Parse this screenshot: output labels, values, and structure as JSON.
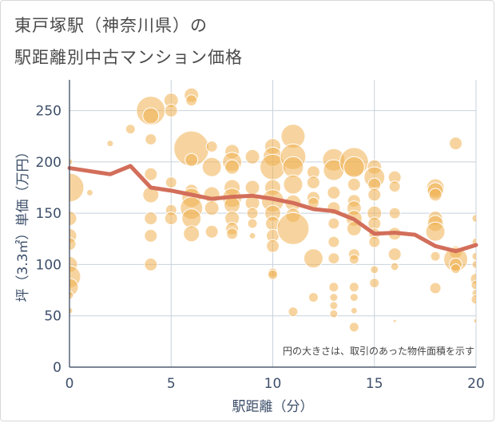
{
  "title_line1": "東戸塚駅（神奈川県）の",
  "title_line2": "駅距離別中古マンション価格",
  "colors": {
    "bubble": "#f0b050",
    "line": "#d26e5a",
    "grid": "#c8d2dc",
    "axis_text": "#3d4f6a"
  },
  "chart_data": {
    "type": "scatter",
    "xlabel": "駅距離（分）",
    "ylabel": "坪（3.3㎡）単価（万円）",
    "xlim": [
      0,
      20
    ],
    "ylim": [
      0,
      280
    ],
    "xticks": [
      "0",
      "5",
      "10",
      "15",
      "20"
    ],
    "yticks": [
      "0",
      "50",
      "100",
      "150",
      "200",
      "250"
    ],
    "annotation": "円の大きさは、取引のあった物件面積を示す",
    "bubbles": [
      {
        "x": 0,
        "y": 175,
        "r": 18
      },
      {
        "x": 0,
        "y": 145,
        "r": 9
      },
      {
        "x": 0,
        "y": 128,
        "r": 9
      },
      {
        "x": 0,
        "y": 120,
        "r": 8
      },
      {
        "x": 0,
        "y": 100,
        "r": 10
      },
      {
        "x": 0,
        "y": 88,
        "r": 14
      },
      {
        "x": 0,
        "y": 78,
        "r": 11
      },
      {
        "x": 0,
        "y": 70,
        "r": 5
      },
      {
        "x": 0,
        "y": 55,
        "r": 4
      },
      {
        "x": 0,
        "y": 200,
        "r": 4
      },
      {
        "x": 1,
        "y": 170,
        "r": 4
      },
      {
        "x": 2,
        "y": 218,
        "r": 4
      },
      {
        "x": 3,
        "y": 232,
        "r": 6
      },
      {
        "x": 4,
        "y": 250,
        "r": 18
      },
      {
        "x": 4,
        "y": 245,
        "r": 10
      },
      {
        "x": 4,
        "y": 222,
        "r": 7
      },
      {
        "x": 4,
        "y": 188,
        "r": 8
      },
      {
        "x": 4,
        "y": 168,
        "r": 10
      },
      {
        "x": 4,
        "y": 145,
        "r": 8
      },
      {
        "x": 4,
        "y": 128,
        "r": 8
      },
      {
        "x": 4,
        "y": 100,
        "r": 8
      },
      {
        "x": 5,
        "y": 260,
        "r": 9
      },
      {
        "x": 5,
        "y": 250,
        "r": 8
      },
      {
        "x": 5,
        "y": 180,
        "r": 7
      },
      {
        "x": 5,
        "y": 153,
        "r": 7
      },
      {
        "x": 5,
        "y": 145,
        "r": 8
      },
      {
        "x": 6,
        "y": 265,
        "r": 9
      },
      {
        "x": 6,
        "y": 260,
        "r": 7
      },
      {
        "x": 6,
        "y": 213,
        "r": 22
      },
      {
        "x": 6,
        "y": 202,
        "r": 8
      },
      {
        "x": 6,
        "y": 172,
        "r": 8
      },
      {
        "x": 6,
        "y": 165,
        "r": 12
      },
      {
        "x": 6,
        "y": 155,
        "r": 14
      },
      {
        "x": 6,
        "y": 145,
        "r": 12
      },
      {
        "x": 6,
        "y": 130,
        "r": 10
      },
      {
        "x": 7,
        "y": 215,
        "r": 7
      },
      {
        "x": 7,
        "y": 195,
        "r": 12
      },
      {
        "x": 7,
        "y": 168,
        "r": 10
      },
      {
        "x": 7,
        "y": 155,
        "r": 9
      },
      {
        "x": 7,
        "y": 132,
        "r": 8
      },
      {
        "x": 8,
        "y": 210,
        "r": 9
      },
      {
        "x": 8,
        "y": 200,
        "r": 12
      },
      {
        "x": 8,
        "y": 195,
        "r": 9
      },
      {
        "x": 8,
        "y": 175,
        "r": 10
      },
      {
        "x": 8,
        "y": 165,
        "r": 12
      },
      {
        "x": 8,
        "y": 158,
        "r": 10
      },
      {
        "x": 8,
        "y": 145,
        "r": 9
      },
      {
        "x": 8,
        "y": 135,
        "r": 8
      },
      {
        "x": 8,
        "y": 130,
        "r": 7
      },
      {
        "x": 9,
        "y": 205,
        "r": 9
      },
      {
        "x": 9,
        "y": 175,
        "r": 9
      },
      {
        "x": 9,
        "y": 160,
        "r": 9
      },
      {
        "x": 9,
        "y": 150,
        "r": 7
      },
      {
        "x": 9,
        "y": 140,
        "r": 6
      },
      {
        "x": 9,
        "y": 128,
        "r": 4
      },
      {
        "x": 10,
        "y": 215,
        "r": 10
      },
      {
        "x": 10,
        "y": 205,
        "r": 12
      },
      {
        "x": 10,
        "y": 195,
        "r": 16
      },
      {
        "x": 10,
        "y": 175,
        "r": 10
      },
      {
        "x": 10,
        "y": 162,
        "r": 14
      },
      {
        "x": 10,
        "y": 150,
        "r": 10
      },
      {
        "x": 10,
        "y": 140,
        "r": 9
      },
      {
        "x": 10,
        "y": 128,
        "r": 8
      },
      {
        "x": 10,
        "y": 118,
        "r": 8
      },
      {
        "x": 10,
        "y": 92,
        "r": 6
      },
      {
        "x": 10,
        "y": 90,
        "r": 6
      },
      {
        "x": 11,
        "y": 225,
        "r": 15
      },
      {
        "x": 11,
        "y": 205,
        "r": 16
      },
      {
        "x": 11,
        "y": 195,
        "r": 13
      },
      {
        "x": 11,
        "y": 178,
        "r": 12
      },
      {
        "x": 11,
        "y": 160,
        "r": 10
      },
      {
        "x": 11,
        "y": 148,
        "r": 9
      },
      {
        "x": 11,
        "y": 135,
        "r": 20
      },
      {
        "x": 11,
        "y": 54,
        "r": 6
      },
      {
        "x": 12,
        "y": 190,
        "r": 8
      },
      {
        "x": 12,
        "y": 180,
        "r": 8
      },
      {
        "x": 12,
        "y": 165,
        "r": 8
      },
      {
        "x": 12,
        "y": 160,
        "r": 7
      },
      {
        "x": 12,
        "y": 106,
        "r": 12
      },
      {
        "x": 12,
        "y": 68,
        "r": 6
      },
      {
        "x": 13,
        "y": 202,
        "r": 14
      },
      {
        "x": 13,
        "y": 192,
        "r": 13
      },
      {
        "x": 13,
        "y": 170,
        "r": 8
      },
      {
        "x": 13,
        "y": 155,
        "r": 8
      },
      {
        "x": 13,
        "y": 140,
        "r": 7
      },
      {
        "x": 13,
        "y": 122,
        "r": 7
      },
      {
        "x": 13,
        "y": 106,
        "r": 7
      },
      {
        "x": 13,
        "y": 78,
        "r": 6
      },
      {
        "x": 13,
        "y": 68,
        "r": 5
      },
      {
        "x": 13,
        "y": 60,
        "r": 5
      },
      {
        "x": 13,
        "y": 52,
        "r": 5
      },
      {
        "x": 14,
        "y": 200,
        "r": 18
      },
      {
        "x": 14,
        "y": 195,
        "r": 13
      },
      {
        "x": 14,
        "y": 178,
        "r": 8
      },
      {
        "x": 14,
        "y": 162,
        "r": 8
      },
      {
        "x": 14,
        "y": 155,
        "r": 9
      },
      {
        "x": 14,
        "y": 145,
        "r": 10
      },
      {
        "x": 14,
        "y": 135,
        "r": 9
      },
      {
        "x": 14,
        "y": 110,
        "r": 7
      },
      {
        "x": 14,
        "y": 105,
        "r": 6
      },
      {
        "x": 14,
        "y": 78,
        "r": 6
      },
      {
        "x": 14,
        "y": 68,
        "r": 5
      },
      {
        "x": 14,
        "y": 55,
        "r": 4
      },
      {
        "x": 14,
        "y": 39,
        "r": 6
      },
      {
        "x": 15,
        "y": 195,
        "r": 9
      },
      {
        "x": 15,
        "y": 185,
        "r": 13
      },
      {
        "x": 15,
        "y": 178,
        "r": 8
      },
      {
        "x": 15,
        "y": 168,
        "r": 8
      },
      {
        "x": 15,
        "y": 150,
        "r": 9
      },
      {
        "x": 15,
        "y": 140,
        "r": 8
      },
      {
        "x": 15,
        "y": 130,
        "r": 7
      },
      {
        "x": 15,
        "y": 122,
        "r": 7
      },
      {
        "x": 15,
        "y": 95,
        "r": 5
      },
      {
        "x": 15,
        "y": 82,
        "r": 6
      },
      {
        "x": 16,
        "y": 185,
        "r": 8
      },
      {
        "x": 16,
        "y": 176,
        "r": 7
      },
      {
        "x": 16,
        "y": 150,
        "r": 7
      },
      {
        "x": 16,
        "y": 130,
        "r": 8
      },
      {
        "x": 16,
        "y": 110,
        "r": 8
      },
      {
        "x": 16,
        "y": 98,
        "r": 5
      },
      {
        "x": 16,
        "y": 45,
        "r": 2
      },
      {
        "x": 18,
        "y": 175,
        "r": 11
      },
      {
        "x": 18,
        "y": 172,
        "r": 10
      },
      {
        "x": 18,
        "y": 168,
        "r": 8
      },
      {
        "x": 18,
        "y": 145,
        "r": 9
      },
      {
        "x": 18,
        "y": 140,
        "r": 10
      },
      {
        "x": 18,
        "y": 132,
        "r": 12
      },
      {
        "x": 18,
        "y": 108,
        "r": 6
      },
      {
        "x": 18,
        "y": 77,
        "r": 7
      },
      {
        "x": 19,
        "y": 218,
        "r": 8
      },
      {
        "x": 19,
        "y": 112,
        "r": 8
      },
      {
        "x": 19,
        "y": 105,
        "r": 15
      },
      {
        "x": 19,
        "y": 100,
        "r": 8
      },
      {
        "x": 19,
        "y": 96,
        "r": 6
      },
      {
        "x": 20,
        "y": 145,
        "r": 5
      },
      {
        "x": 20,
        "y": 122,
        "r": 5
      },
      {
        "x": 20,
        "y": 108,
        "r": 5
      },
      {
        "x": 20,
        "y": 100,
        "r": 5
      },
      {
        "x": 20,
        "y": 86,
        "r": 7
      },
      {
        "x": 20,
        "y": 80,
        "r": 6
      },
      {
        "x": 20,
        "y": 72,
        "r": 5
      },
      {
        "x": 20,
        "y": 66,
        "r": 6
      },
      {
        "x": 20,
        "y": 45,
        "r": 3
      }
    ],
    "series": [
      {
        "x": [
          0,
          1,
          2,
          3,
          4,
          5,
          6,
          7,
          8,
          9,
          10,
          11,
          12,
          13,
          14,
          15,
          16,
          17,
          18,
          19,
          20
        ],
        "values": [
          194,
          191,
          188,
          196,
          175,
          172,
          168,
          164,
          166,
          167,
          164,
          160,
          154,
          152,
          144,
          130,
          131,
          129,
          118,
          113,
          119
        ]
      }
    ]
  }
}
